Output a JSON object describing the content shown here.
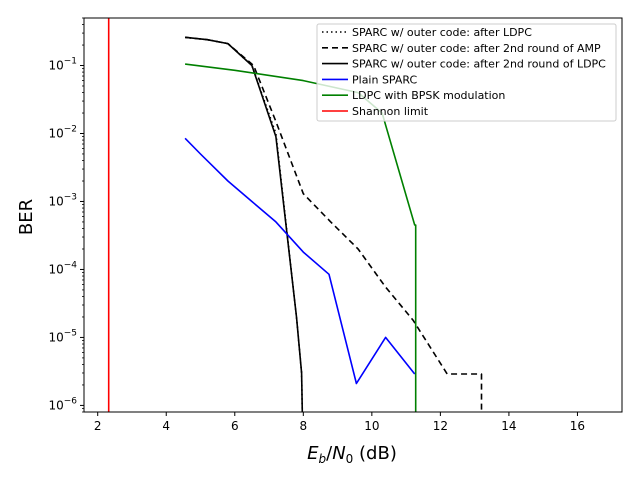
{
  "chart_data": {
    "type": "line",
    "title": "",
    "xlabel": {
      "var_main": "E",
      "var_sub": "b",
      "sep": "/",
      "var2_main": "N",
      "var2_sub": "0",
      "unit": " (dB)"
    },
    "ylabel": "BER",
    "xlim": [
      1.6,
      17.3
    ],
    "ylim": [
      8e-07,
      0.5
    ],
    "y_scale": "log",
    "x_ticks": [
      2,
      4,
      6,
      8,
      10,
      12,
      14,
      16
    ],
    "y_tick_exponents": [
      -6,
      -5,
      -4,
      -3,
      -2,
      -1
    ],
    "y_tick_base": "10",
    "grid": false,
    "legend_position": "top-right",
    "series": [
      {
        "name": "SPARC w/ outer code: after LDPC",
        "color": "#000000",
        "dash": "1.5,3",
        "x": [
          4.55,
          5.2,
          5.8,
          6.5,
          7.2,
          7.8,
          7.95,
          7.97
        ],
        "y": [
          0.26,
          0.24,
          0.21,
          0.1,
          0.01,
          2e-05,
          3e-06,
          8e-07
        ]
      },
      {
        "name": "SPARC w/ outer code: after 2nd round of AMP",
        "color": "#000000",
        "dash": "6,4",
        "x": [
          4.55,
          5.2,
          5.8,
          6.55,
          7.2,
          8.0,
          8.8,
          9.6,
          10.4,
          11.2,
          12.2,
          12.6,
          13.2,
          13.2
        ],
        "y": [
          0.26,
          0.24,
          0.21,
          0.1,
          0.015,
          0.0013,
          0.0005,
          0.0002,
          5.5e-05,
          1.8e-05,
          2.9e-06,
          2.9e-06,
          2.9e-06,
          8e-07
        ]
      },
      {
        "name": "SPARC w/ outer code: after 2nd round of LDPC",
        "color": "#000000",
        "dash": "",
        "x": [
          4.55,
          5.2,
          5.8,
          6.5,
          7.2,
          7.8,
          7.95,
          7.97
        ],
        "y": [
          0.26,
          0.24,
          0.21,
          0.1,
          0.009,
          2e-05,
          3e-06,
          8e-07
        ]
      },
      {
        "name": "Plain SPARC",
        "color": "#0000ff",
        "dash": "",
        "x": [
          4.55,
          5.0,
          5.8,
          6.5,
          7.2,
          8.0,
          8.75,
          9.55,
          10.4,
          11.25
        ],
        "y": [
          0.0085,
          0.005,
          0.002,
          0.001,
          0.0005,
          0.00018,
          8.5e-05,
          2.1e-06,
          1e-05,
          2.9e-06
        ]
      },
      {
        "name": "LDPC with BPSK modulation",
        "color": "#008000",
        "dash": "",
        "x": [
          4.55,
          6.0,
          8.0,
          9.6,
          10.3,
          11.25,
          11.28,
          11.28
        ],
        "y": [
          0.105,
          0.085,
          0.06,
          0.04,
          0.02,
          0.00045,
          0.00045,
          8e-07
        ]
      },
      {
        "name": "Shannon limit",
        "color": "#ff0000",
        "dash": "",
        "x": [
          2.32,
          2.32
        ],
        "y": [
          8e-07,
          0.5
        ]
      }
    ]
  }
}
